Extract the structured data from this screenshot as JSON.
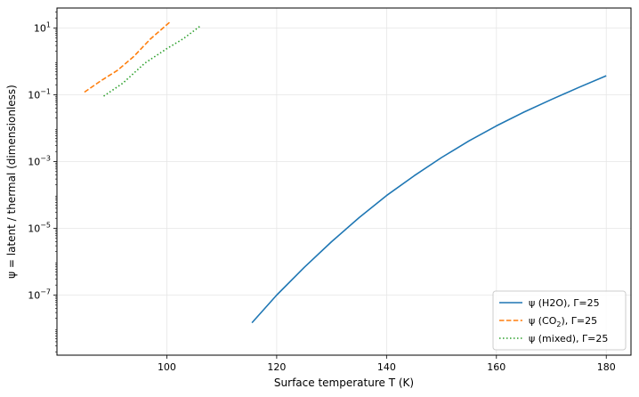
{
  "chart_data": {
    "type": "line",
    "title": "",
    "xlabel": "Surface temperature T (K)",
    "ylabel": "ψ = latent / thermal  (dimensionless)",
    "xlim": [
      80,
      184.5
    ],
    "ylim_log10": [
      -8.8,
      1.6
    ],
    "yscale": "log",
    "grid": true,
    "legend_position": "lower-right",
    "x_ticks": [
      100,
      120,
      140,
      160,
      180
    ],
    "y_ticks_exp": [
      1,
      -1,
      -3,
      -5,
      -7
    ],
    "series": [
      {
        "name": "ψ (H2O), Γ=25",
        "legend_parts": [
          "ψ (H2O), Γ=25"
        ],
        "color": "#1f77b4",
        "dash": "solid",
        "x": [
          115.5,
          120,
          125,
          130,
          135,
          140,
          145,
          150,
          155,
          160,
          165,
          170,
          175,
          180
        ],
        "log10_y": [
          -7.83,
          -7.0,
          -6.17,
          -5.4,
          -4.68,
          -4.02,
          -3.43,
          -2.88,
          -2.38,
          -1.93,
          -1.52,
          -1.14,
          -0.78,
          -0.43
        ]
      },
      {
        "name": "ψ (CO2), Γ=25",
        "legend_parts": [
          "ψ (CO",
          "2",
          "), Γ=25"
        ],
        "color": "#ff7f0e",
        "dash": "dashed",
        "x": [
          85,
          88,
          91,
          94,
          97,
          100.5
        ],
        "log10_y": [
          -0.92,
          -0.58,
          -0.27,
          0.15,
          0.67,
          1.17
        ]
      },
      {
        "name": "ψ (mixed), Γ=25",
        "legend_parts": [
          "ψ (mixed), Γ=25"
        ],
        "color": "#2ca02c",
        "dash": "dotted",
        "x": [
          88.5,
          92,
          96,
          100,
          103,
          106
        ],
        "log10_y": [
          -1.04,
          -0.65,
          -0.05,
          0.38,
          0.68,
          1.05
        ]
      }
    ]
  }
}
